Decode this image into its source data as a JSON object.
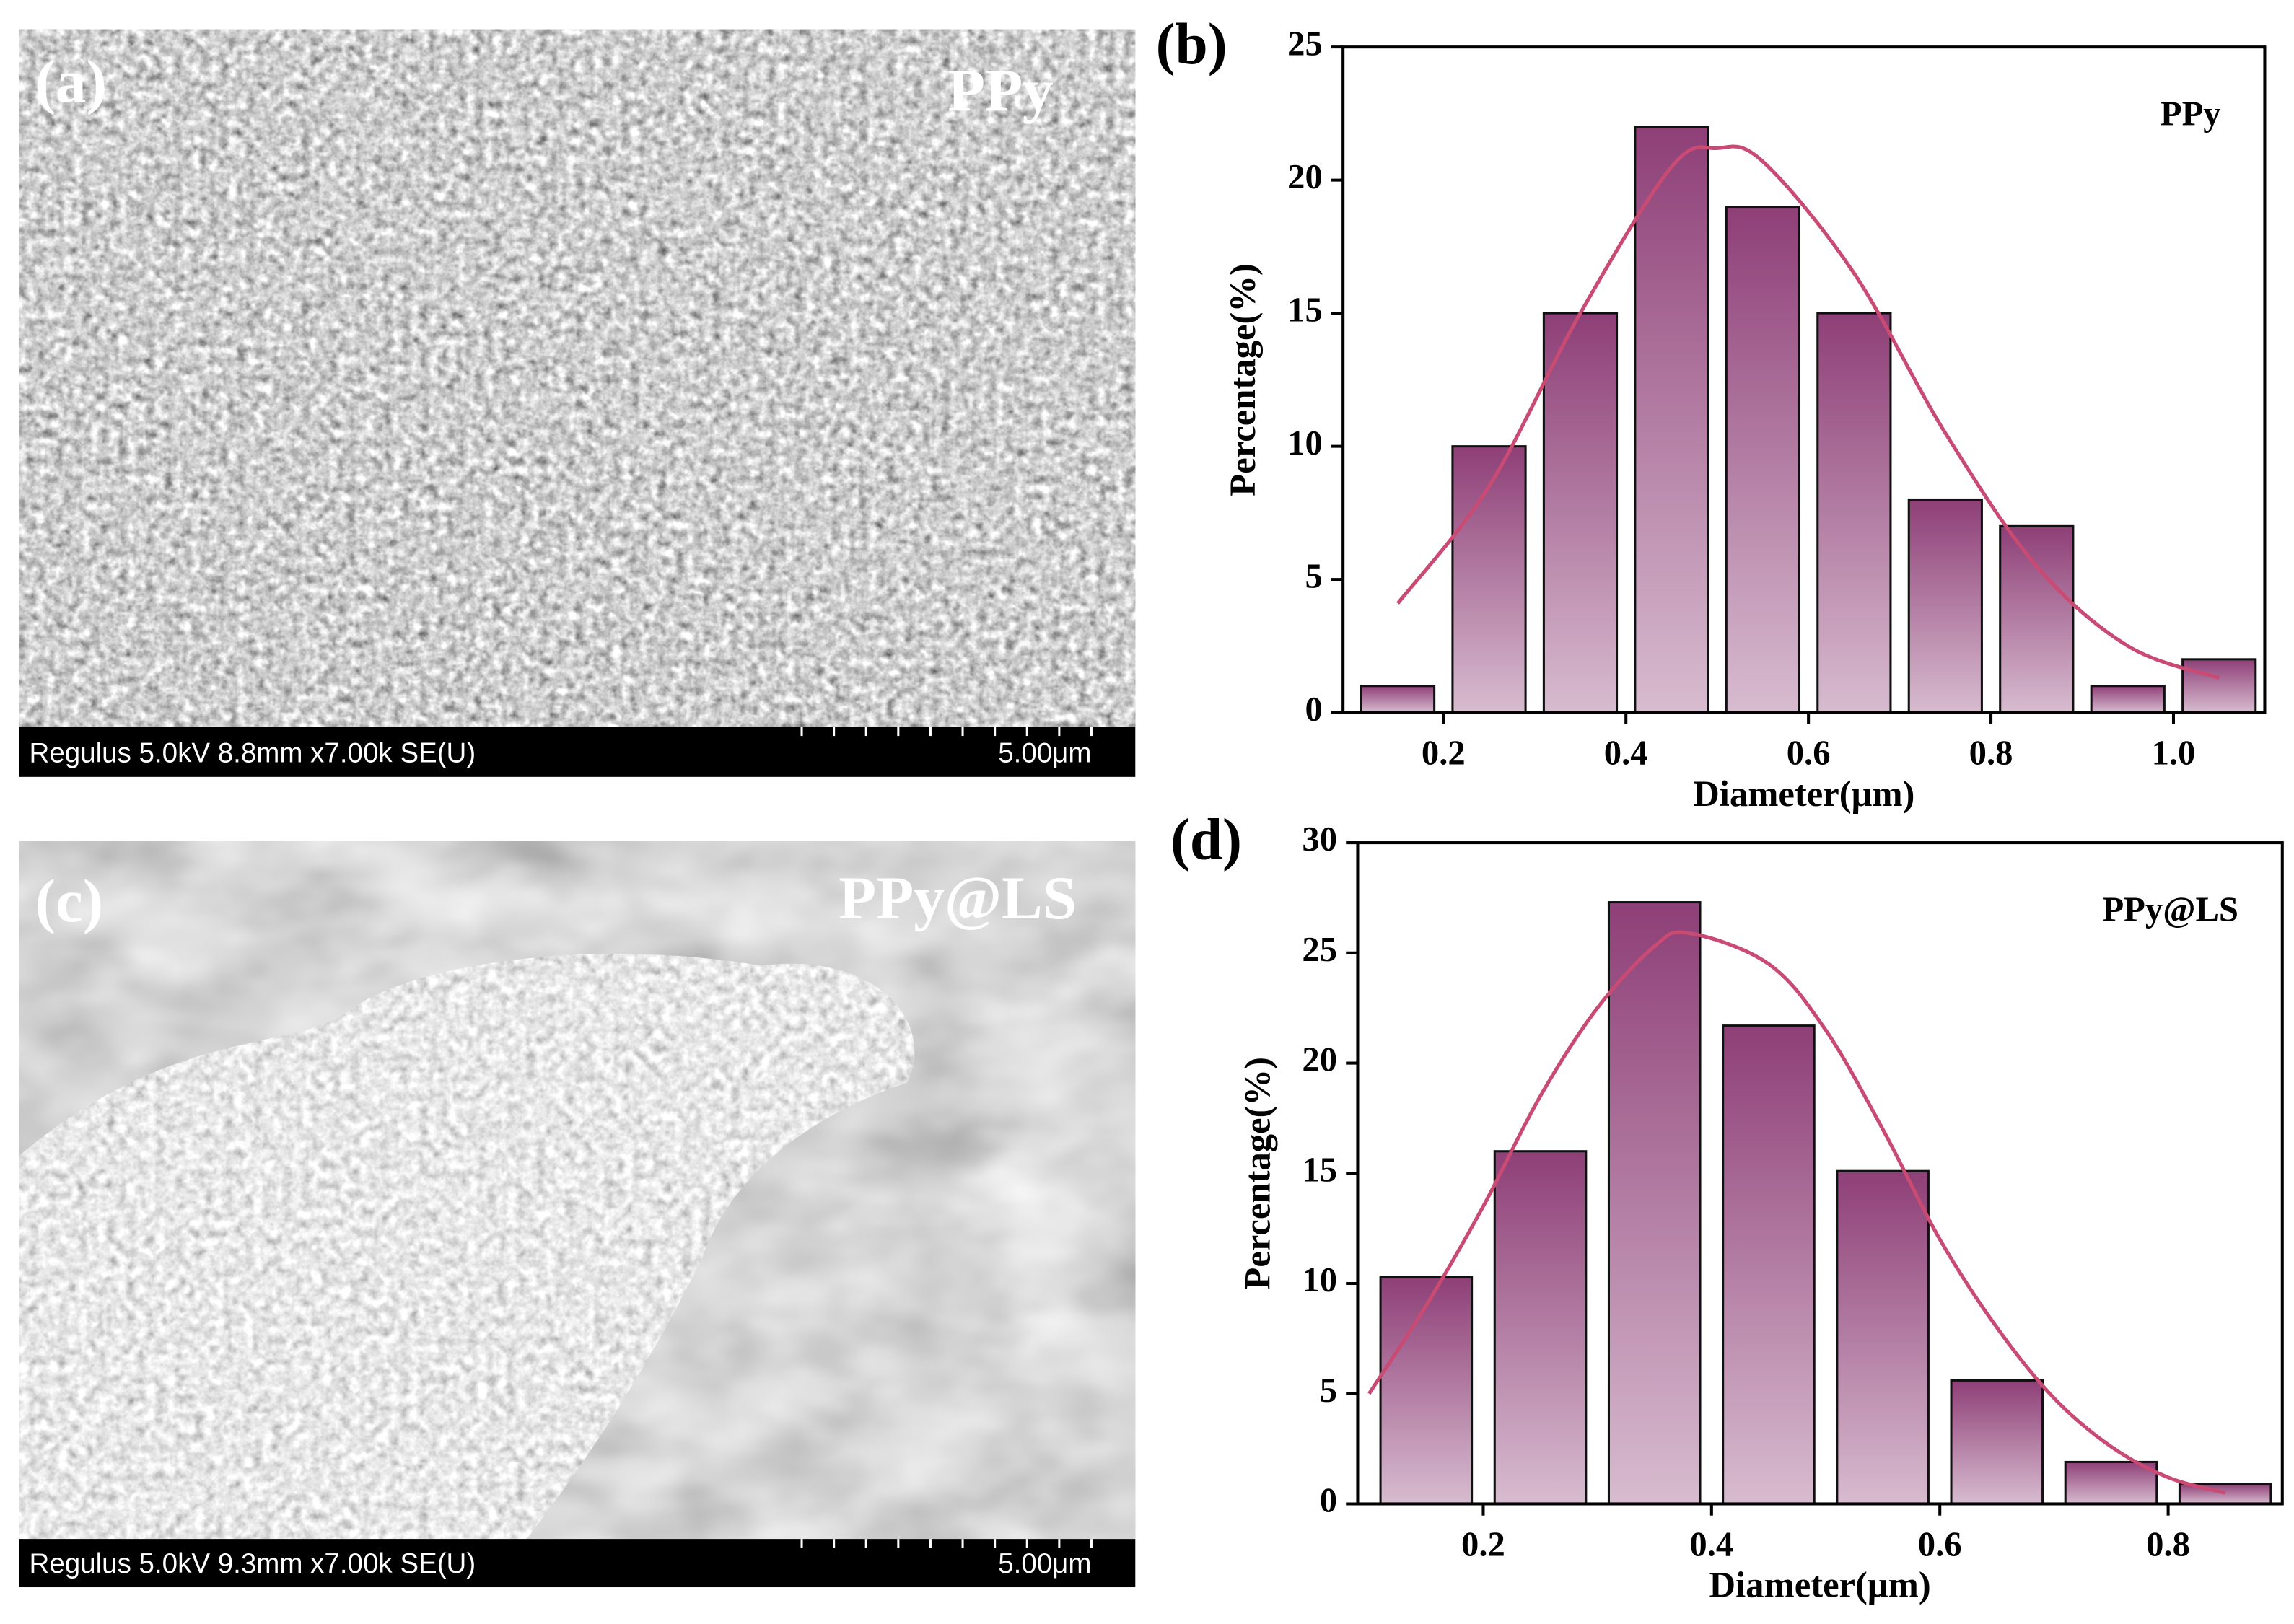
{
  "panels": [
    {
      "label": "(a)",
      "sample": "PPy",
      "info": "Regulus 5.0kV 8.8mm x7.00k SE(U)",
      "scale": "5.00μm"
    },
    {
      "label": "(c)",
      "sample": "PPy@LS",
      "info": "Regulus 5.0kV 9.3mm x7.00k SE(U)",
      "scale": "5.00μm"
    }
  ],
  "chart_data": [
    {
      "type": "histogram",
      "panel_label": "(b)",
      "annotation": "PPy",
      "xlabel": "Diameter(μm)",
      "ylabel": "Percentage(%)",
      "color": "#8e3f77",
      "bins": [
        0.1,
        0.2,
        0.3,
        0.4,
        0.5,
        0.6,
        0.7,
        0.8,
        0.9,
        1.0,
        1.1
      ],
      "values": [
        1,
        10,
        15,
        22,
        19,
        15,
        8,
        7,
        1,
        2
      ],
      "xlim": [
        0.09,
        1.1
      ],
      "xticks": [
        0.2,
        0.4,
        0.6,
        0.8,
        {
          "value": 1,
          "label": "1.0"
        }
      ],
      "ylim": [
        0,
        25
      ],
      "yticks": [
        0,
        5,
        10,
        15,
        20,
        25
      ],
      "fit": {
        "color": "#c94a73",
        "x": [
          0.15,
          0.25,
          0.35,
          0.45,
          0.5,
          0.55,
          0.65,
          0.75,
          0.85,
          0.95,
          1.05
        ],
        "values": [
          4.1,
          8.5,
          15,
          20.5,
          21.2,
          20.7,
          16.5,
          10.5,
          5.5,
          2.5,
          1.3
        ]
      }
    },
    {
      "type": "histogram",
      "panel_label": "(d)",
      "annotation": "PPy@LS",
      "xlabel": "Diameter(μm)",
      "ylabel": "Percentage(%)",
      "color": "#8e3f77",
      "bins": [
        0.1,
        0.2,
        0.3,
        0.4,
        0.5,
        0.6,
        0.7,
        0.8,
        0.9
      ],
      "values": [
        10.3,
        16,
        27.3,
        21.7,
        15.1,
        5.6,
        1.9,
        0.9
      ],
      "xlim": [
        0.09,
        0.9
      ],
      "xticks": [
        0.2,
        0.4,
        0.6,
        0.8
      ],
      "ylim": [
        0,
        30
      ],
      "yticks": [
        0,
        5,
        10,
        15,
        20,
        25,
        30
      ],
      "fit": {
        "color": "#c94a73",
        "x": [
          0.1,
          0.15,
          0.2,
          0.25,
          0.3,
          0.35,
          0.38,
          0.45,
          0.5,
          0.55,
          0.6,
          0.65,
          0.7,
          0.75,
          0.8,
          0.85
        ],
        "values": [
          5,
          9,
          13.5,
          18.5,
          22.5,
          25.3,
          25.9,
          24.5,
          21.5,
          17,
          12,
          8,
          4.8,
          2.6,
          1.2,
          0.5
        ]
      }
    }
  ]
}
